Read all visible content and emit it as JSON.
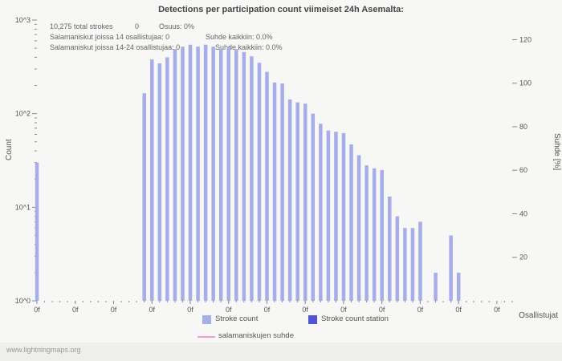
{
  "title": "Detections per participation count viimeiset 24h Asemalta:",
  "watermark": "www.lightningmaps.org",
  "annotations": {
    "total": "10,275 total strokes",
    "total_value": "0",
    "share": "Osuus: 0%",
    "line2_left": "Salamaniskut joissa 14 osallistujaa: 0",
    "line2_right": "Suhde kaikkiin: 0.0%",
    "line3_left": "Salamaniskut joissa 14-24 osallistujaa: 0",
    "line3_right": "Suhde kaikkiin: 0.0%"
  },
  "axes": {
    "xlabel": "Osallistujat",
    "ylabel_left": "Count",
    "ylabel_right": "Suhde [%]"
  },
  "chart_data": {
    "type": "bar",
    "title": "Detections per participation count viimeiset 24h Asemalta:",
    "xlabel": "Osallistujat",
    "ylabel": "Count",
    "ylabel_right": "Suhde [%]",
    "y_scale": "log",
    "ylim": [
      1,
      1000
    ],
    "right_axis_max": 129,
    "left_ticks": [
      "10^3",
      "10^2",
      "10^1",
      "10^0"
    ],
    "right_ticks": [
      120,
      100,
      80,
      60,
      40,
      20
    ],
    "x_tick_label": "0f",
    "x_tick_every": 5,
    "slots": 63,
    "grid": false,
    "legend_position": "bottom",
    "total_strokes": 10275,
    "series": [
      {
        "name": "Stroke count",
        "type": "bar",
        "color": "#a7ade9",
        "points": [
          [
            0,
            30
          ],
          [
            14,
            165
          ],
          [
            15,
            380
          ],
          [
            16,
            345
          ],
          [
            17,
            400
          ],
          [
            18,
            490
          ],
          [
            19,
            520
          ],
          [
            20,
            545
          ],
          [
            21,
            520
          ],
          [
            22,
            545
          ],
          [
            23,
            520
          ],
          [
            24,
            495
          ],
          [
            25,
            520
          ],
          [
            26,
            490
          ],
          [
            27,
            455
          ],
          [
            28,
            410
          ],
          [
            29,
            350
          ],
          [
            30,
            280
          ],
          [
            31,
            215
          ],
          [
            32,
            210
          ],
          [
            33,
            142
          ],
          [
            34,
            132
          ],
          [
            35,
            128
          ],
          [
            36,
            100
          ],
          [
            37,
            78
          ],
          [
            38,
            66
          ],
          [
            39,
            64
          ],
          [
            40,
            62
          ],
          [
            41,
            47
          ],
          [
            42,
            36
          ],
          [
            43,
            28
          ],
          [
            44,
            26
          ],
          [
            45,
            25
          ],
          [
            46,
            13
          ],
          [
            47,
            8
          ],
          [
            48,
            6
          ],
          [
            49,
            6
          ],
          [
            50,
            7
          ],
          [
            52,
            2
          ],
          [
            54,
            5
          ],
          [
            55,
            2
          ]
        ]
      },
      {
        "name": "Stroke count station",
        "type": "bar",
        "color": "#5055d5",
        "points": []
      },
      {
        "name": "salamaniskujen suhde",
        "type": "line",
        "color": "#f0a0d0",
        "points": []
      }
    ]
  }
}
